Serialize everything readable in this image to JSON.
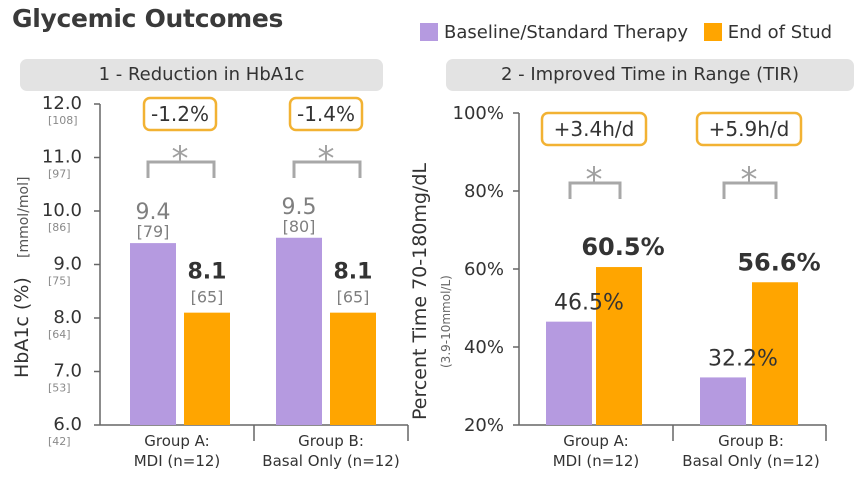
{
  "page": {
    "title": "Glycemic Outcomes"
  },
  "legend": [
    {
      "label": "Baseline/Standard Therapy",
      "color": "#b59ae0"
    },
    {
      "label": "End of Stud",
      "color": "#ffa500"
    }
  ],
  "colors": {
    "baseline": "#b59ae0",
    "end": "#ffa500",
    "callout_border": "#f2b233",
    "bracket": "#a8a8a8"
  },
  "chart_data": [
    {
      "type": "bar",
      "title": "1 - Reduction in HbA1c",
      "ylabel": "HbA1c (%)",
      "ylabel_unit": "[mmol/mol]",
      "categories": [
        "Group A:\nMDI (n=12)",
        "Group B:\nBasal Only (n=12)"
      ],
      "series": [
        {
          "values": [
            9.4,
            9.5
          ],
          "mmol": [
            "[79]",
            "[80]"
          ]
        },
        {
          "values": [
            8.1,
            8.1
          ],
          "mmol": [
            "[65]",
            "[65]"
          ]
        }
      ],
      "yticks": [
        "12.0",
        "11.0",
        "10.0",
        "9.0",
        "8.0",
        "7.0",
        "6.0"
      ],
      "ytick_values": [
        12,
        11,
        10,
        9,
        8,
        7,
        6
      ],
      "ytick_mmol": [
        "[108]",
        "[97]",
        "[86]",
        "[75]",
        "[64]",
        "[53]",
        "[42]"
      ],
      "ylim": [
        6,
        12
      ],
      "callouts": [
        "-1.2%",
        "-1.4%"
      ],
      "significance": [
        "*",
        "*"
      ]
    },
    {
      "type": "bar",
      "title": "2 - Improved Time in Range (TIR)",
      "ylabel": "Percent Time 70-180mg/dL",
      "ylabel_sub": "(3.9-10mmol/L)",
      "categories": [
        "Group A:\nMDI (n=12)",
        "Group B:\nBasal Only (n=12)"
      ],
      "series": [
        {
          "values": [
            46.5,
            32.2
          ],
          "labels": [
            "46.5%",
            "32.2%"
          ]
        },
        {
          "values": [
            60.5,
            56.6
          ],
          "labels": [
            "60.5%",
            "56.6%"
          ]
        }
      ],
      "yticks": [
        "100%",
        "80%",
        "60%",
        "40%",
        "20%"
      ],
      "ytick_values": [
        100,
        80,
        60,
        40,
        20
      ],
      "ylim": [
        20,
        100
      ],
      "callouts": [
        "+3.4h/d",
        "+5.9h/d"
      ],
      "significance": [
        "*",
        "*"
      ]
    }
  ]
}
